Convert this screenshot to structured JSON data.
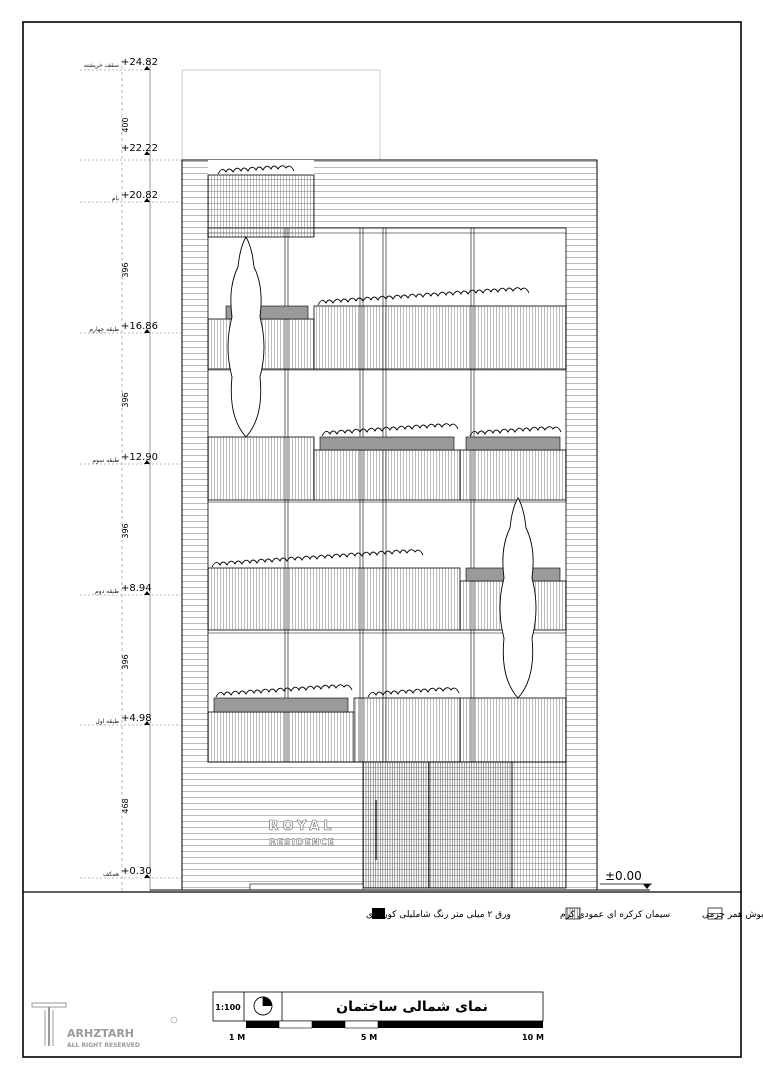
{
  "levels": [
    {
      "value": "+24.82",
      "name": "سقف خرپشته"
    },
    {
      "value": "+22.22",
      "name": ""
    },
    {
      "value": "+20.82",
      "name": "بام"
    },
    {
      "value": "+16.86",
      "name": "طبقه چهارم"
    },
    {
      "value": "+12.90",
      "name": "طبقه سوم"
    },
    {
      "value": "+8.94",
      "name": "طبقه دوم"
    },
    {
      "value": "+4.98",
      "name": "طبقه اول"
    },
    {
      "value": "+0.30",
      "name": "همکف"
    }
  ],
  "dimensions": [
    "400",
    "396",
    "396",
    "396",
    "396",
    "468"
  ],
  "ground_level": "±0.00",
  "signage": {
    "line1": "ROYAL",
    "line2": "RESIDENCE"
  },
  "legend": [
    {
      "label": "تراورتن بوش همر چرمی",
      "swatch": "horizontal-lines"
    },
    {
      "label": "سیمان کرکره ای عمودی کرم",
      "swatch": "vertical-lines"
    },
    {
      "label": "ورق ۲ میلی متر رنگ شاملیلی کوره ای",
      "swatch": "solid-black"
    }
  ],
  "title_block": {
    "scale": "1:100",
    "title": "نمای شمالی ساختمان",
    "scale_bar_labels": [
      "1 M",
      "5 M",
      "10 M"
    ]
  },
  "logo": {
    "text": "ARHZTARH",
    "sub": "ALL RIGHT RESERVED"
  },
  "colors": {
    "ink": "#000000",
    "panel": "#9a9a9a",
    "stone": "#ffffff"
  }
}
